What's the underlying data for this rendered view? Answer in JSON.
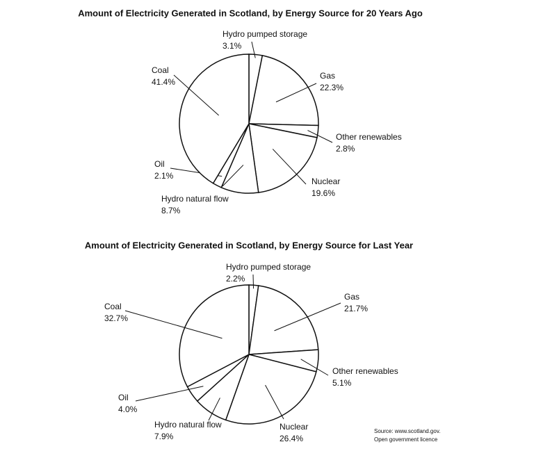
{
  "chart_data": [
    {
      "type": "pie",
      "title": "Amount of Electricity Generated in Scotland, by Energy Source for 20 Years Ago",
      "categories": [
        "Hydro pumped storage",
        "Gas",
        "Other renewables",
        "Nuclear",
        "Hydro natural flow",
        "Oil",
        "Coal"
      ],
      "values": [
        3.1,
        22.3,
        2.8,
        19.6,
        8.7,
        2.1,
        41.4
      ],
      "value_labels": [
        "3.1%",
        "22.3%",
        "2.8%",
        "19.6%",
        "8.7%",
        "2.1%",
        "41.4%"
      ],
      "color": "#ffffff"
    },
    {
      "type": "pie",
      "title": "Amount of Electricity Generated in Scotland, by Energy Source for Last Year",
      "categories": [
        "Hydro pumped storage",
        "Gas",
        "Other renewables",
        "Nuclear",
        "Hydro natural flow",
        "Oil",
        "Coal"
      ],
      "values": [
        2.2,
        21.7,
        5.1,
        26.4,
        7.9,
        4.0,
        32.7
      ],
      "value_labels": [
        "2.2%",
        "21.7%",
        "5.1%",
        "26.4%",
        "7.9%",
        "4.0%",
        "32.7%"
      ],
      "color": "#ffffff"
    }
  ],
  "source": [
    "Source: www.scotland.gov.",
    "Open government licence"
  ]
}
